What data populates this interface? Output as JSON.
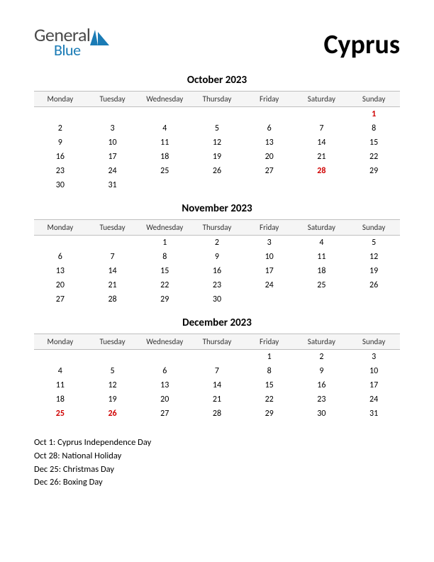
{
  "logo": {
    "line1": "General",
    "line2": "Blue",
    "color_general": "#4a4a4a",
    "color_blue": "#1a7bb5",
    "mark_color": "#1a7bb5"
  },
  "country": "Cyprus",
  "day_headers": [
    "Monday",
    "Tuesday",
    "Wednesday",
    "Thursday",
    "Friday",
    "Saturday",
    "Sunday"
  ],
  "months": [
    {
      "title": "October 2023",
      "weeks": [
        [
          "",
          "",
          "",
          "",
          "",
          "",
          "1"
        ],
        [
          "2",
          "3",
          "4",
          "5",
          "6",
          "7",
          "8"
        ],
        [
          "9",
          "10",
          "11",
          "12",
          "13",
          "14",
          "15"
        ],
        [
          "16",
          "17",
          "18",
          "19",
          "20",
          "21",
          "22"
        ],
        [
          "23",
          "24",
          "25",
          "26",
          "27",
          "28",
          "29"
        ],
        [
          "30",
          "31",
          "",
          "",
          "",
          "",
          ""
        ]
      ],
      "holidays": [
        "1",
        "28"
      ]
    },
    {
      "title": "November 2023",
      "weeks": [
        [
          "",
          "",
          "1",
          "2",
          "3",
          "4",
          "5"
        ],
        [
          "6",
          "7",
          "8",
          "9",
          "10",
          "11",
          "12"
        ],
        [
          "13",
          "14",
          "15",
          "16",
          "17",
          "18",
          "19"
        ],
        [
          "20",
          "21",
          "22",
          "23",
          "24",
          "25",
          "26"
        ],
        [
          "27",
          "28",
          "29",
          "30",
          "",
          "",
          ""
        ]
      ],
      "holidays": []
    },
    {
      "title": "December 2023",
      "weeks": [
        [
          "",
          "",
          "",
          "",
          "1",
          "2",
          "3"
        ],
        [
          "4",
          "5",
          "6",
          "7",
          "8",
          "9",
          "10"
        ],
        [
          "11",
          "12",
          "13",
          "14",
          "15",
          "16",
          "17"
        ],
        [
          "18",
          "19",
          "20",
          "21",
          "22",
          "23",
          "24"
        ],
        [
          "25",
          "26",
          "27",
          "28",
          "29",
          "30",
          "31"
        ]
      ],
      "holidays": [
        "25",
        "26"
      ]
    }
  ],
  "holiday_list": [
    "Oct 1: Cyprus Independence Day",
    "Oct 28: National Holiday",
    "Dec 25: Christmas Day",
    "Dec 26: Boxing Day"
  ],
  "style": {
    "page_bg": "#ffffff",
    "text_color": "#000000",
    "header_row_bg": "#f5f5f5",
    "header_row_border": "#bfbfbf",
    "holiday_color": "#d00000",
    "month_title_fontsize": 15,
    "day_header_fontsize": 11,
    "cell_fontsize": 12,
    "country_fontsize": 38,
    "holiday_list_fontsize": 12.5
  }
}
